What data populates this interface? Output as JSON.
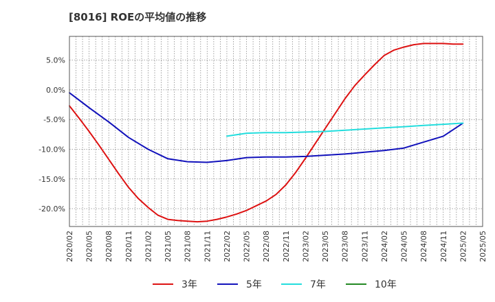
{
  "chart_data": {
    "type": "line",
    "title": "[8016]  ROEの平均値の推移",
    "xlabel": "",
    "ylabel": "",
    "ylim": [
      -23.0,
      9.0
    ],
    "y_ticks": [
      {
        "value": 5.0,
        "label": "5.0%"
      },
      {
        "value": 0.0,
        "label": "0.0%"
      },
      {
        "value": -5.0,
        "label": "-5.0%"
      },
      {
        "value": -10.0,
        "label": "-10.0%"
      },
      {
        "value": -15.0,
        "label": "-15.0%"
      },
      {
        "value": -20.0,
        "label": "-20.0%"
      }
    ],
    "x_tick_labels": [
      "2020/02",
      "2020/05",
      "2020/08",
      "2020/11",
      "2021/02",
      "2021/05",
      "2021/08",
      "2021/11",
      "2022/02",
      "2022/05",
      "2022/08",
      "2022/11",
      "2023/02",
      "2023/05",
      "2023/08",
      "2023/11",
      "2024/02",
      "2024/05",
      "2024/08",
      "2024/11",
      "2025/02",
      "2025/05"
    ],
    "x_unit": "quarter index from 2020/02",
    "legend_position": "bottom",
    "series": [
      {
        "name": "3年",
        "color": "#dd1111",
        "x": [
          0,
          0.5,
          1,
          1.5,
          2,
          2.5,
          3,
          3.5,
          4,
          4.5,
          5,
          5.5,
          6,
          6.5,
          7,
          7.5,
          8,
          8.5,
          9,
          9.5,
          10,
          10.5,
          11,
          11.5,
          12,
          12.5,
          13,
          13.5,
          14,
          14.5,
          15,
          15.5,
          16,
          16.5,
          17,
          17.5,
          18,
          18.5,
          19,
          19.5,
          20
        ],
        "values": [
          -2.7,
          -4.8,
          -7.0,
          -9.3,
          -11.7,
          -14.1,
          -16.4,
          -18.3,
          -19.8,
          -21.1,
          -21.8,
          -22.0,
          -22.1,
          -22.2,
          -22.1,
          -21.8,
          -21.4,
          -20.9,
          -20.3,
          -19.5,
          -18.7,
          -17.6,
          -16.0,
          -13.9,
          -11.5,
          -9.0,
          -6.5,
          -4.0,
          -1.5,
          0.7,
          2.5,
          4.2,
          5.8,
          6.7,
          7.2,
          7.6,
          7.8,
          7.8,
          7.8,
          7.7,
          7.7
        ]
      },
      {
        "name": "5年",
        "color": "#1111bb",
        "x": [
          0,
          1,
          2,
          3,
          4,
          5,
          6,
          7,
          8,
          9,
          10,
          11,
          12,
          13,
          14,
          15,
          16,
          17,
          18,
          19,
          20
        ],
        "values": [
          -0.5,
          -3.0,
          -5.4,
          -8.0,
          -10.0,
          -11.6,
          -12.1,
          -12.2,
          -11.9,
          -11.4,
          -11.3,
          -11.3,
          -11.2,
          -11.0,
          -10.8,
          -10.5,
          -10.2,
          -9.8,
          -8.8,
          -7.8,
          -5.6
        ]
      },
      {
        "name": "7年",
        "color": "#22dddd",
        "x": [
          8,
          9,
          10,
          11,
          12,
          13,
          14,
          15,
          16,
          17,
          18,
          19,
          20
        ],
        "values": [
          -7.8,
          -7.3,
          -7.2,
          -7.2,
          -7.1,
          -7.0,
          -6.8,
          -6.6,
          -6.4,
          -6.2,
          -6.0,
          -5.8,
          -5.6
        ]
      },
      {
        "name": "10年",
        "color": "#228822",
        "x": [],
        "values": []
      }
    ]
  }
}
